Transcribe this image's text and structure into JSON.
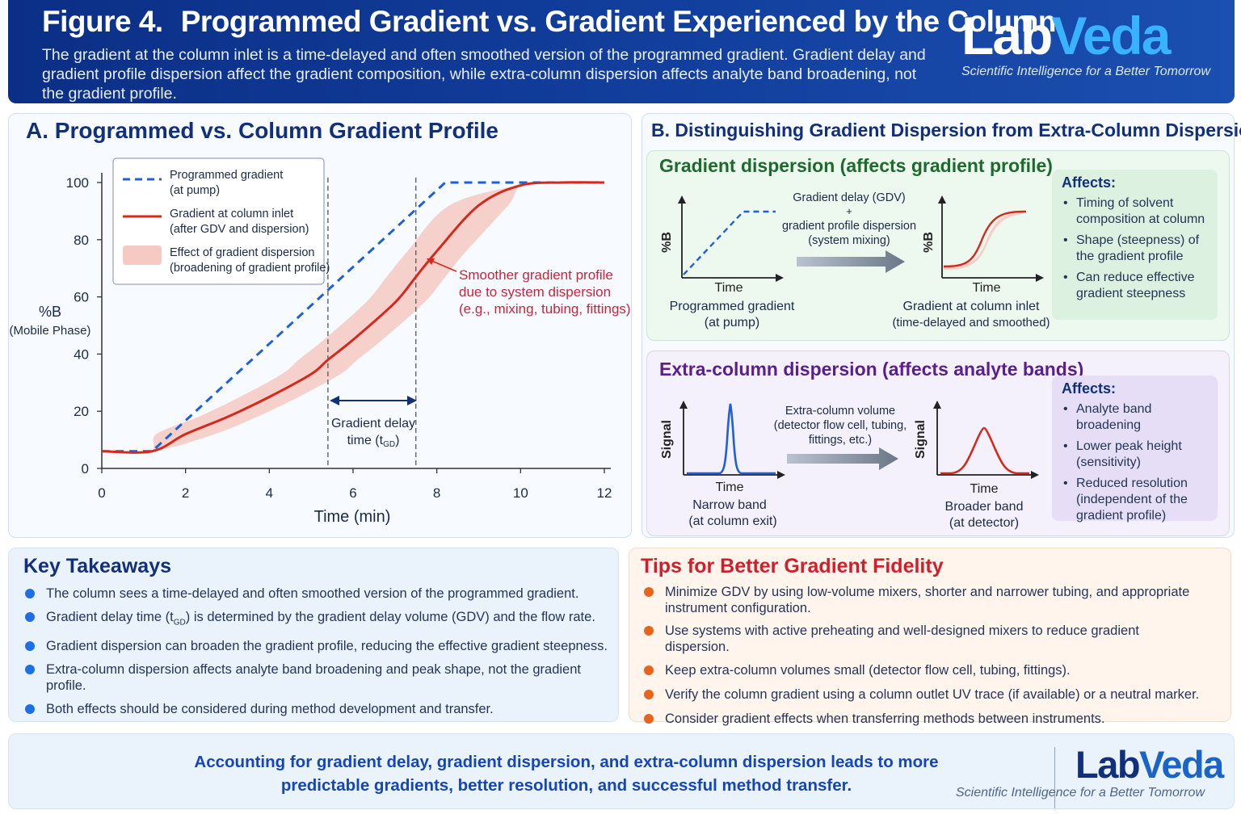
{
  "header": {
    "figure_num": "Figure 4.",
    "title": "Programmed Gradient vs. Gradient Experienced by the Column",
    "subtitle": "The gradient at the column inlet is a time-delayed and often smoothed version of the programmed gradient. Gradient delay and gradient profile dispersion affect the gradient composition, while extra-column dispersion affects analyte band broadening, not the gradient profile.",
    "logo_lab": "Lab",
    "logo_veda": "Veda",
    "logo_tagline": "Scientific Intelligence for a Better Tomorrow"
  },
  "panelA": {
    "title": "A. Programmed vs. Column Gradient Profile",
    "legend": {
      "programmed_1": "Programmed gradient",
      "programmed_2": "(at pump)",
      "column_1": "Gradient at column inlet",
      "column_2": "(after GDV and dispersion)",
      "effect_1": "Effect of gradient dispersion",
      "effect_2": "(broadening of gradient profile)"
    },
    "annotation_1": "Smoother gradient profile",
    "annotation_2": "due to system dispersion",
    "annotation_3": "(e.g., mixing, tubing, fittings)",
    "delay_label_1": "Gradient delay",
    "delay_label_2": "time (t",
    "delay_label_sub": "GD",
    "delay_label_3": ")"
  },
  "chart_data": {
    "type": "line",
    "xlabel": "Time (min)",
    "ylabel": "%B",
    "ylabel_2": "(Mobile Phase)",
    "xlim": [
      0,
      12
    ],
    "ylim": [
      0,
      100
    ],
    "xticks": [
      "0",
      "2",
      "4",
      "6",
      "8",
      "10",
      "12"
    ],
    "yticks": [
      "0",
      "20",
      "40",
      "60",
      "80",
      "100"
    ],
    "series": [
      {
        "name": "Programmed gradient (at pump)",
        "color": "#1f5fd8",
        "style": "dashed",
        "x": [
          0,
          1.2,
          8.2,
          12
        ],
        "y": [
          6,
          6,
          100,
          100
        ]
      },
      {
        "name": "Gradient at column inlet (after GDV and dispersion)",
        "color": "#d42a1e",
        "style": "solid",
        "x": [
          0,
          1.2,
          2,
          3,
          4,
          5,
          5.4,
          6,
          7,
          7.5,
          8,
          9,
          10,
          11,
          12
        ],
        "y": [
          6,
          6,
          12,
          18,
          25,
          33,
          38,
          45,
          58,
          67,
          76,
          92,
          99,
          100,
          100
        ]
      }
    ],
    "band": {
      "name": "Effect of gradient dispersion (broadening of gradient profile)",
      "color": "#f6c9c3",
      "half_width_min": 0.7
    },
    "delay_markers": [
      5.4,
      7.5
    ]
  },
  "panelB": {
    "title": "B. Distinguishing Gradient Dispersion from Extra-Column Dispersion",
    "gradient_section": {
      "title": "Gradient dispersion (affects gradient profile)",
      "ylabel": "%B",
      "xlabel": "Time",
      "left_caption_1": "Programmed gradient",
      "left_caption_2": "(at pump)",
      "arrow_1": "Gradient delay (GDV)",
      "arrow_plus": "+",
      "arrow_2": "gradient profile dispersion",
      "arrow_3": "(system mixing)",
      "right_caption_1": "Gradient at column inlet",
      "right_caption_2": "(time-delayed and smoothed)",
      "affects_title": "Affects:",
      "affects": [
        "Timing of solvent composition at column",
        "Shape (steepness) of the gradient profile",
        "Can reduce effective gradient steepness"
      ]
    },
    "extra_section": {
      "title": "Extra-column dispersion (affects analyte bands)",
      "ylabel": "Signal",
      "xlabel": "Time",
      "left_caption_1": "Narrow band",
      "left_caption_2": "(at column exit)",
      "arrow_1": "Extra-column volume",
      "arrow_2": "(detector flow cell, tubing,",
      "arrow_3": "fittings, etc.)",
      "right_caption_1": "Broader band",
      "right_caption_2": "(at detector)",
      "affects_title": "Affects:",
      "affects": [
        "Analyte band broadening",
        "Lower peak height (sensitivity)",
        "Reduced resolution (independent of the gradient profile)"
      ]
    }
  },
  "key_takeaways": {
    "title": "Key Takeaways",
    "bullet_color": "#1e6ee6",
    "items": [
      "The column sees a time-delayed and often smoothed version of the programmed gradient.",
      "Gradient dispersion can broaden the gradient profile, reducing the effective gradient steepness.",
      "Extra-column dispersion affects analyte band broadening and peak shape, not the gradient profile.",
      "Both effects should be considered during method development and transfer."
    ],
    "gdv_item_a": "Gradient delay time (t",
    "gdv_item_sub": "GD",
    "gdv_item_b": ") is determined by the gradient delay volume (GDV) and the flow rate."
  },
  "tips": {
    "title": "Tips for Better Gradient Fidelity",
    "bullet_color": "#e8641e",
    "items": [
      "Minimize GDV by using low-volume mixers, shorter and narrower tubing, and appropriate instrument configuration.",
      "Use systems with active preheating and well-designed mixers to reduce gradient dispersion.",
      "Keep extra-column volumes small (detector flow cell, tubing, fittings).",
      "Verify the column gradient using a column outlet UV trace (if available) or a neutral marker.",
      "Consider gradient effects when transferring methods between instruments."
    ]
  },
  "footer": {
    "message_1": "Accounting for gradient delay, gradient dispersion, and extra-column dispersion leads to more",
    "message_2": "predictable gradients, better resolution, and successful method transfer.",
    "logo_lab": "Lab",
    "logo_veda": "Veda",
    "logo_tagline": "Scientific Intelligence for a Better Tomorrow"
  }
}
